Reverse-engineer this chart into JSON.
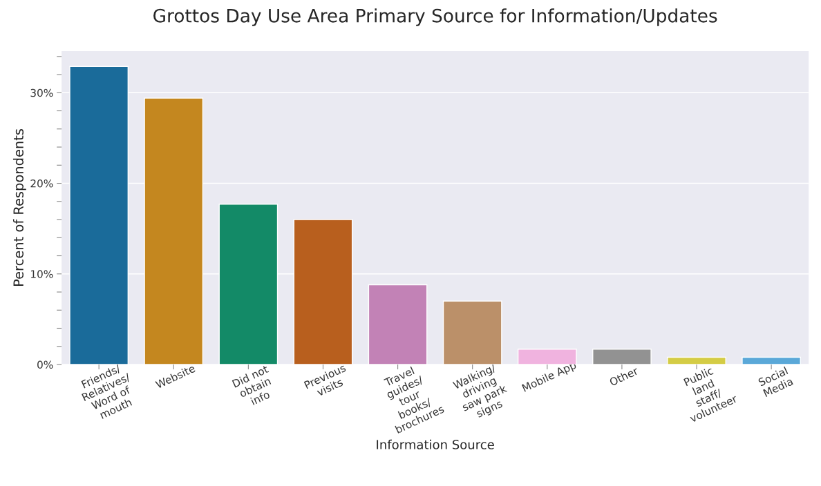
{
  "chart_data": {
    "type": "bar",
    "title": "Grottos Day Use Area Primary Source for Information/Updates",
    "xlabel": "Information Source",
    "ylabel": "Percent of Respondents",
    "categories": [
      "Friends/\nRelatives/\nWord of\nmouth",
      "Website",
      "Did not\nobtain\ninfo",
      "Previous\nvisits",
      "Travel\nguides/\ntour\nbooks/\nbrochures",
      "Walking/\ndriving\nsaw park\nsigns",
      "Mobile App",
      "Other",
      "Public\nland\nstaff/\nvolunteer",
      "Social\nMedia"
    ],
    "values": [
      32.9,
      29.4,
      17.7,
      16.0,
      8.8,
      7.0,
      1.7,
      1.7,
      0.8,
      0.8
    ],
    "colors": [
      "#1a6b9a",
      "#c4871f",
      "#138a67",
      "#b85f1e",
      "#c282b6",
      "#bb9069",
      "#f0b3df",
      "#929292",
      "#d4cc45",
      "#5aa8d8"
    ],
    "ylim": [
      0,
      34.6
    ],
    "yticks": [
      {
        "value": 0,
        "label": "0%"
      },
      {
        "value": 2,
        "label": null
      },
      {
        "value": 4,
        "label": null
      },
      {
        "value": 6,
        "label": null
      },
      {
        "value": 8,
        "label": null
      },
      {
        "value": 10,
        "label": "10%"
      },
      {
        "value": 12,
        "label": null
      },
      {
        "value": 14,
        "label": null
      },
      {
        "value": 16,
        "label": null
      },
      {
        "value": 18,
        "label": null
      },
      {
        "value": 20,
        "label": "20%"
      },
      {
        "value": 22,
        "label": null
      },
      {
        "value": 24,
        "label": null
      },
      {
        "value": 26,
        "label": null
      },
      {
        "value": 28,
        "label": null
      },
      {
        "value": 30,
        "label": "30%"
      },
      {
        "value": 32,
        "label": null
      },
      {
        "value": 34,
        "label": null
      }
    ],
    "grid": "y"
  }
}
